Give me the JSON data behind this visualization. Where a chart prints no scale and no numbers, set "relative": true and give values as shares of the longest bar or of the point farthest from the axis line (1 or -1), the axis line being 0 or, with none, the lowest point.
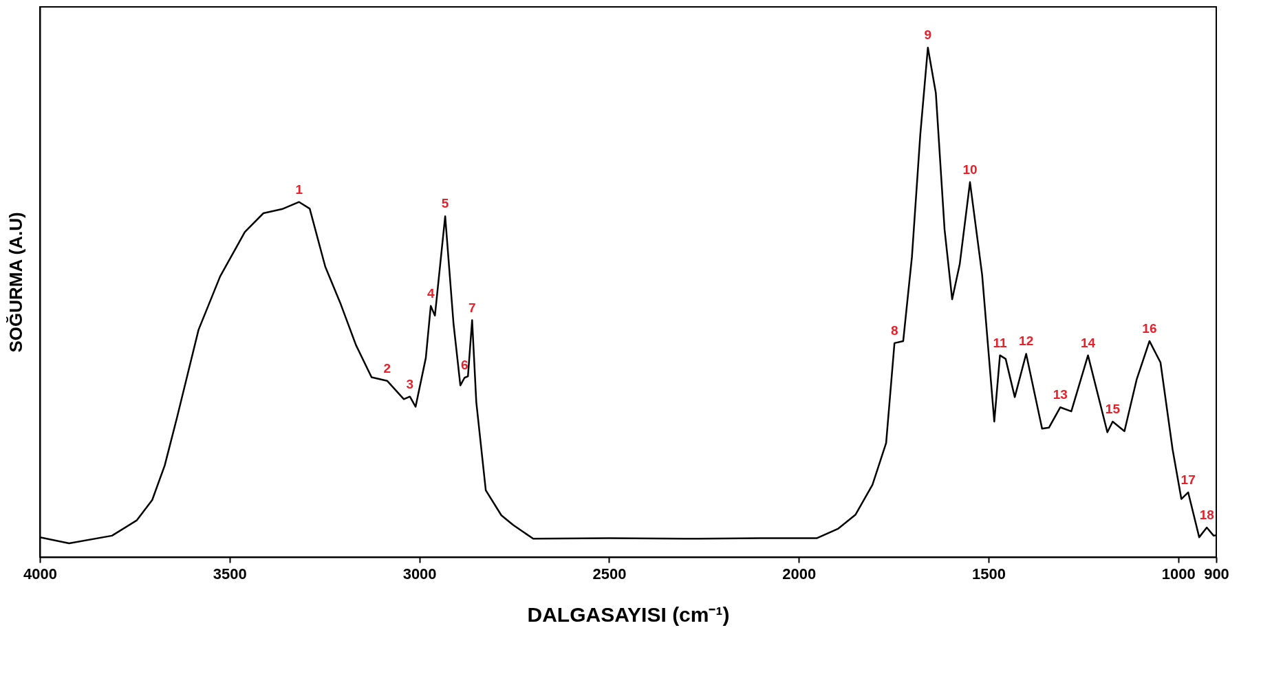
{
  "chart_data": {
    "type": "line",
    "relative": true,
    "xlabel": "DALGASAYISI (cm⁻¹)",
    "ylabel": "SOĞURMA (A.U)",
    "xlim": [
      4000,
      900
    ],
    "xticks": [
      4000,
      3500,
      3000,
      2500,
      2000,
      1500,
      1000,
      900
    ],
    "grid": false,
    "series": [
      {
        "color": "#000000",
        "x": [
          4000,
          3923,
          3810,
          3745,
          3704,
          3671,
          3639,
          3582,
          3525,
          3460,
          3411,
          3362,
          3317,
          3289,
          3248,
          3207,
          3167,
          3126,
          3085,
          3041,
          3025,
          3010,
          2983,
          2970,
          2959,
          2932,
          2910,
          2892,
          2881,
          2872,
          2861,
          2850,
          2825,
          2784,
          2753,
          2700,
          2500,
          2300,
          2100,
          1953,
          1896,
          1851,
          1806,
          1770,
          1748,
          1725,
          1702,
          1680,
          1660,
          1639,
          1616,
          1596,
          1576,
          1549,
          1517,
          1485,
          1470,
          1455,
          1431,
          1401,
          1359,
          1341,
          1311,
          1282,
          1238,
          1187,
          1173,
          1142,
          1110,
          1076,
          1047,
          1015,
          992,
          974,
          945,
          925,
          907,
          900
        ],
        "values": [
          0.039,
          0.027,
          0.042,
          0.072,
          0.112,
          0.18,
          0.273,
          0.446,
          0.551,
          0.638,
          0.675,
          0.683,
          0.697,
          0.684,
          0.57,
          0.496,
          0.416,
          0.353,
          0.346,
          0.31,
          0.315,
          0.295,
          0.391,
          0.493,
          0.474,
          0.669,
          0.458,
          0.337,
          0.352,
          0.355,
          0.465,
          0.304,
          0.131,
          0.082,
          0.063,
          0.036,
          0.037,
          0.036,
          0.037,
          0.037,
          0.056,
          0.083,
          0.142,
          0.224,
          0.42,
          0.424,
          0.589,
          0.829,
          1.0,
          0.911,
          0.643,
          0.506,
          0.575,
          0.736,
          0.554,
          0.266,
          0.396,
          0.389,
          0.314,
          0.399,
          0.252,
          0.254,
          0.294,
          0.286,
          0.396,
          0.245,
          0.266,
          0.247,
          0.348,
          0.424,
          0.382,
          0.211,
          0.114,
          0.127,
          0.039,
          0.058,
          0.042,
          0.043
        ]
      }
    ],
    "annotations": [
      {
        "text": "1",
        "x": 3317,
        "y": 0.697
      },
      {
        "text": "2",
        "x": 3085,
        "y": 0.346
      },
      {
        "text": "3",
        "x": 3025,
        "y": 0.315
      },
      {
        "text": "4",
        "x": 2970,
        "y": 0.493
      },
      {
        "text": "5",
        "x": 2932,
        "y": 0.669
      },
      {
        "text": "6",
        "x": 2881,
        "y": 0.352
      },
      {
        "text": "7",
        "x": 2861,
        "y": 0.465
      },
      {
        "text": "8",
        "x": 1748,
        "y": 0.42
      },
      {
        "text": "9",
        "x": 1660,
        "y": 1.0
      },
      {
        "text": "10",
        "x": 1549,
        "y": 0.736
      },
      {
        "text": "11",
        "x": 1470,
        "y": 0.396
      },
      {
        "text": "12",
        "x": 1401,
        "y": 0.399
      },
      {
        "text": "13",
        "x": 1311,
        "y": 0.294
      },
      {
        "text": "14",
        "x": 1238,
        "y": 0.396
      },
      {
        "text": "15",
        "x": 1173,
        "y": 0.266
      },
      {
        "text": "16",
        "x": 1076,
        "y": 0.424
      },
      {
        "text": "17",
        "x": 974,
        "y": 0.127
      },
      {
        "text": "18",
        "x": 925,
        "y": 0.058
      }
    ]
  }
}
